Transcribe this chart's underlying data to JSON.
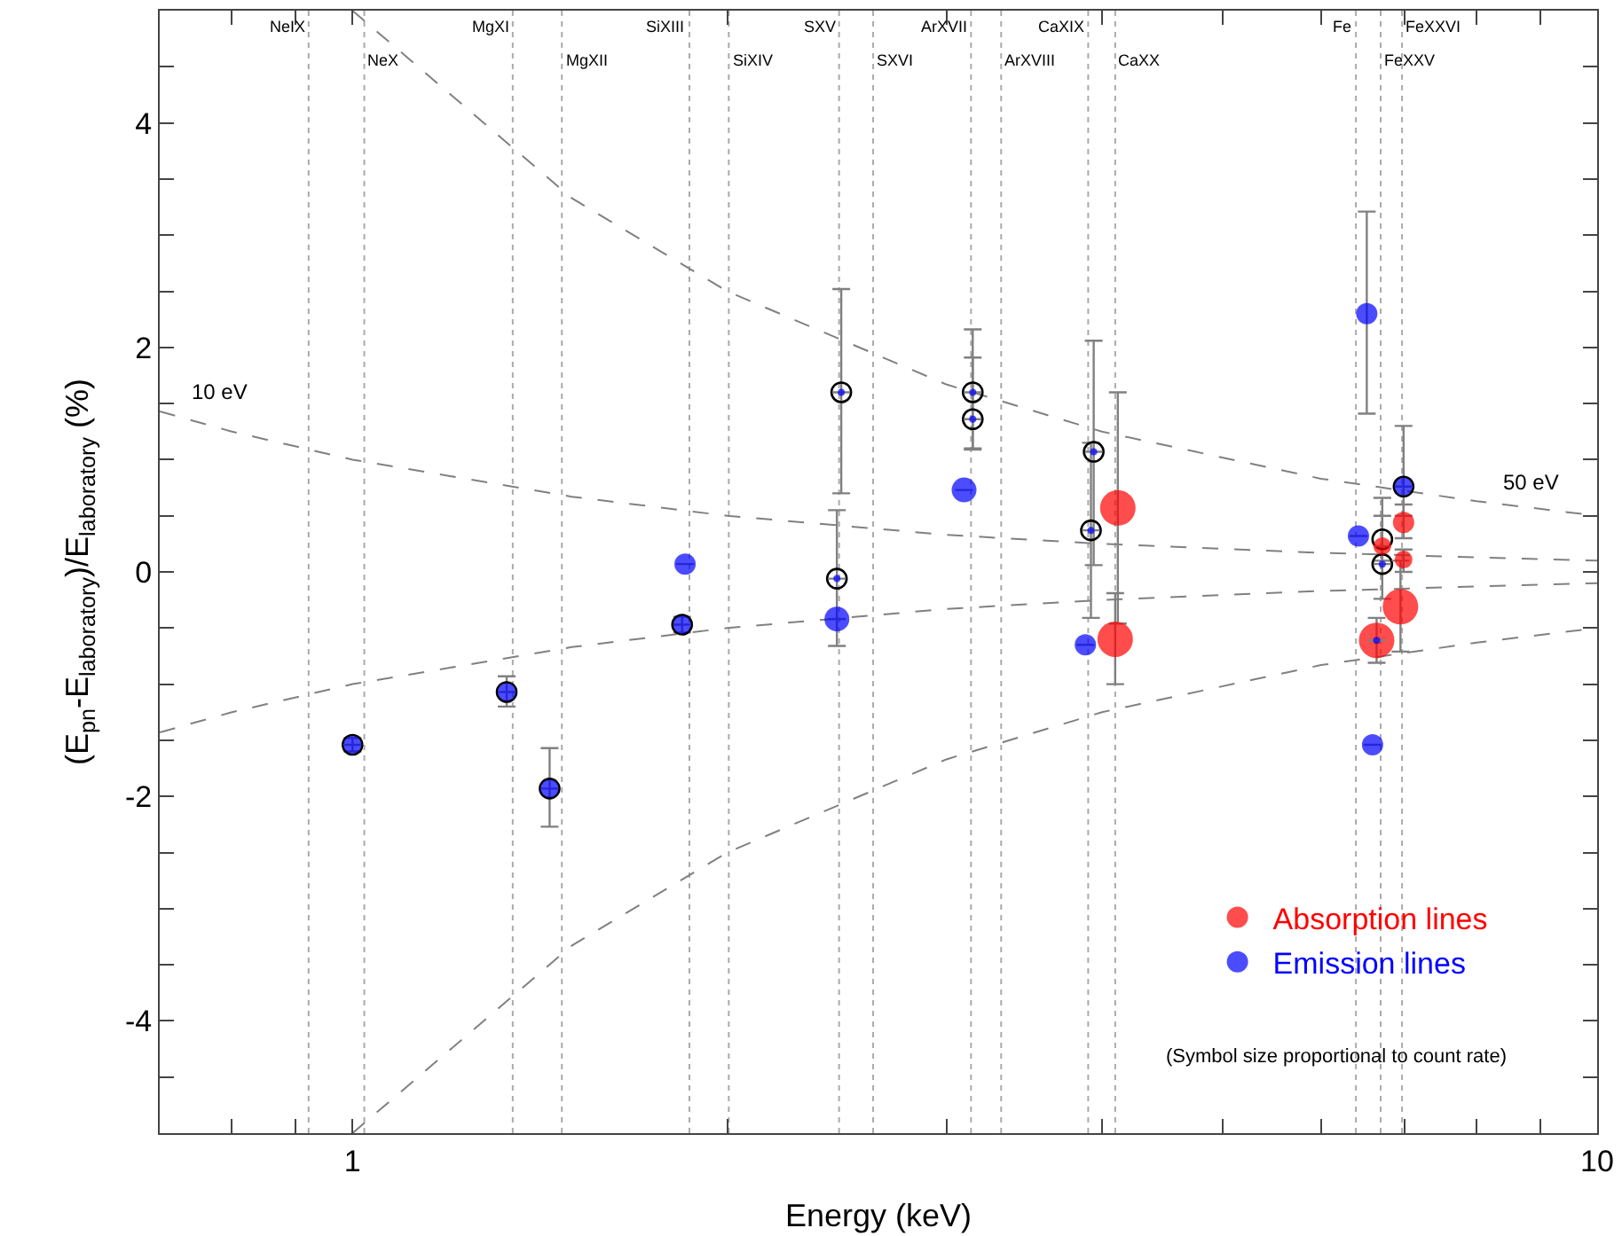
{
  "chart_data": {
    "type": "scatter",
    "xlabel": "Energy (keV)",
    "ylabel": "(E$_{pn}$-E$_{laboratory}$)/E$_{laboratory}$ (%)",
    "log": "x",
    "xlim": [
      0.7,
      10
    ],
    "ylim": [
      -5,
      5
    ],
    "xticks": [
      {
        "value": 0.7,
        "label": null
      },
      {
        "value": 0.8,
        "label": null
      },
      {
        "value": 0.9,
        "label": null
      },
      1,
      {
        "value": 2,
        "label": null
      },
      {
        "value": 3,
        "label": null
      },
      {
        "value": 4,
        "label": null
      },
      {
        "value": 5,
        "label": null
      },
      {
        "value": 6,
        "label": null
      },
      {
        "value": 7,
        "label": null
      },
      {
        "value": 8,
        "label": null
      },
      {
        "value": 9,
        "label": null
      },
      {
        "value": 10,
        "label": "10"
      }
    ],
    "yticks": [
      {
        "value": -5,
        "label": null
      },
      {
        "value": -4.5,
        "label": null
      },
      -4,
      {
        "value": -3.5,
        "label": null
      },
      {
        "value": -3,
        "label": null
      },
      {
        "value": -2.5,
        "label": null
      },
      -2,
      {
        "value": -1.5,
        "label": null
      },
      {
        "value": -1,
        "label": null
      },
      {
        "value": -0.5,
        "label": null
      },
      0,
      {
        "value": 0.5,
        "label": null
      },
      {
        "value": 1,
        "label": null
      },
      {
        "value": 1.5,
        "label": null
      },
      2,
      {
        "value": 2.5,
        "label": null
      },
      {
        "value": 3,
        "label": null
      },
      {
        "value": 3.5,
        "label": null
      },
      4,
      {
        "value": 4.5,
        "label": null
      },
      {
        "value": 5,
        "label": null
      }
    ],
    "legend": "bottom right",
    "series": [
      {
        "type": "line",
        "color": "#808080",
        "line_style": "dashed",
        "x": [
          0.7,
          0.8,
          1,
          1.5,
          2,
          3,
          4,
          6,
          8,
          10
        ],
        "values": [
          1.43,
          1.25,
          1,
          0.67,
          0.5,
          0.33,
          0.25,
          0.17,
          0.13,
          0.1
        ]
      },
      {
        "type": "line",
        "color": "#808080",
        "line_style": "dashed",
        "x": [
          0.7,
          0.8,
          1,
          1.5,
          2,
          3,
          4,
          6,
          8,
          10
        ],
        "values": [
          -1.43,
          -1.25,
          -1,
          -0.67,
          -0.5,
          -0.33,
          -0.25,
          -0.17,
          -0.13,
          -0.1
        ]
      },
      {
        "type": "line",
        "color": "#808080",
        "line_style": "dashed",
        "x": [
          1,
          1.5,
          2,
          3,
          4,
          6,
          8,
          10
        ],
        "values": [
          5,
          3.33,
          2.5,
          1.67,
          1.25,
          0.83,
          0.63,
          0.5
        ]
      },
      {
        "type": "line",
        "color": "#808080",
        "line_style": "dashed",
        "x": [
          1,
          1.5,
          2,
          3,
          4,
          6,
          8,
          10
        ],
        "values": [
          -5,
          -3.33,
          -2.5,
          -1.67,
          -1.25,
          -0.83,
          -0.63,
          -0.5
        ]
      },
      {
        "type": "scatter",
        "marker": "circle-open",
        "color": "#000000",
        "x": [
          1.0,
          1.33,
          1.44,
          1.84,
          2.45,
          2.47,
          3.15,
          3.15,
          3.94,
          3.92,
          6.72,
          6.72,
          6.99
        ],
        "values": [
          -1.54,
          -1.07,
          -1.93,
          -0.47,
          -0.06,
          1.6,
          1.6,
          1.36,
          1.07,
          0.37,
          0.29,
          0.07,
          0.76
        ],
        "errors": [
          [
            -1.6,
            -1.48
          ],
          [
            -1.2,
            -0.93
          ],
          [
            -2.27,
            -1.57
          ],
          [
            -0.54,
            -0.4
          ],
          [
            -0.66,
            0.55
          ],
          [
            0.7,
            2.52
          ],
          [
            1.1,
            2.16
          ],
          [
            1.09,
            1.91
          ],
          [
            0.06,
            2.06
          ],
          [
            -0.41,
            1.15
          ],
          [
            0.1,
            0.5
          ],
          [
            -0.24,
            0.66
          ],
          [
            0.5,
            1.3
          ]
        ]
      },
      {
        "type": "bubble",
        "name": "Absorption lines",
        "color": "#ff0000",
        "x": [
          4.12,
          4.1,
          6.72,
          6.65,
          6.99,
          6.99,
          6.95
        ],
        "values": [
          0.57,
          -0.6,
          0.23,
          -0.61,
          0.44,
          0.11,
          -0.31
        ],
        "sizes": [
          1,
          1,
          0.25,
          1,
          0.36,
          0.25,
          1
        ],
        "errors": [
          [
            -0.46,
            1.6
          ],
          [
            -1.0,
            -0.19
          ],
          null,
          [
            -0.81,
            -0.41
          ],
          [
            0.3,
            0.6
          ],
          [
            0.0,
            0.2
          ],
          [
            -0.71,
            0.1
          ]
        ]
      },
      {
        "type": "bubble",
        "name": "Emission lines",
        "color": "#0000ff",
        "x": [
          1.0,
          1.33,
          1.44,
          1.84,
          1.85,
          2.45,
          2.45,
          2.47,
          3.15,
          3.15,
          3.1,
          3.94,
          3.92,
          3.88,
          6.53,
          6.43,
          6.72,
          6.6,
          6.99,
          6.65
        ],
        "values": [
          -1.54,
          -1.07,
          -1.93,
          -0.47,
          0.07,
          -0.42,
          -0.06,
          1.6,
          1.6,
          1.36,
          0.73,
          1.07,
          0.37,
          -0.65,
          2.3,
          0.32,
          0.07,
          -1.54,
          0.76,
          -0.61
        ],
        "sizes": [
          0.25,
          0.25,
          0.25,
          0.25,
          0.36,
          0.49,
          0.04,
          0.04,
          0.04,
          0.04,
          0.49,
          0.04,
          0.04,
          0.36,
          0.36,
          0.36,
          0.04,
          0.36,
          0.25,
          0.04
        ],
        "errors": [
          null,
          null,
          null,
          null,
          null,
          null,
          null,
          null,
          null,
          null,
          null,
          null,
          null,
          null,
          [
            1.41,
            3.21
          ],
          null,
          null,
          null,
          null,
          null
        ]
      }
    ],
    "ref_lines": [
      {
        "axis": "x",
        "value": 0.922,
        "label": "NeIX"
      },
      {
        "axis": "x",
        "value": 1.022,
        "label": "NeX"
      },
      {
        "axis": "x",
        "value": 1.345,
        "label": "MgXI"
      },
      {
        "axis": "x",
        "value": 1.473,
        "label": "MgXII"
      },
      {
        "axis": "x",
        "value": 1.865,
        "label": "SiXIII"
      },
      {
        "axis": "x",
        "value": 2.006,
        "label": "SiXIV"
      },
      {
        "axis": "x",
        "value": 2.46,
        "label": "SXV"
      },
      {
        "axis": "x",
        "value": 2.62,
        "label": "SXVI"
      },
      {
        "axis": "x",
        "value": 3.14,
        "label": "ArXVII"
      },
      {
        "axis": "x",
        "value": 3.32,
        "label": "ArXVIII"
      },
      {
        "axis": "x",
        "value": 3.9,
        "label": "CaXIX"
      },
      {
        "axis": "x",
        "value": 4.1,
        "label": "CaXX"
      },
      {
        "axis": "x",
        "value": 6.4,
        "label": "Fe"
      },
      {
        "axis": "x",
        "value": 6.7,
        "label": "FeXXV"
      },
      {
        "axis": "x",
        "value": 6.97,
        "label": "FeXXVI"
      }
    ],
    "annotations": [
      "10 eV",
      "50 eV",
      "(Symbol size proportional to count rate)"
    ]
  }
}
